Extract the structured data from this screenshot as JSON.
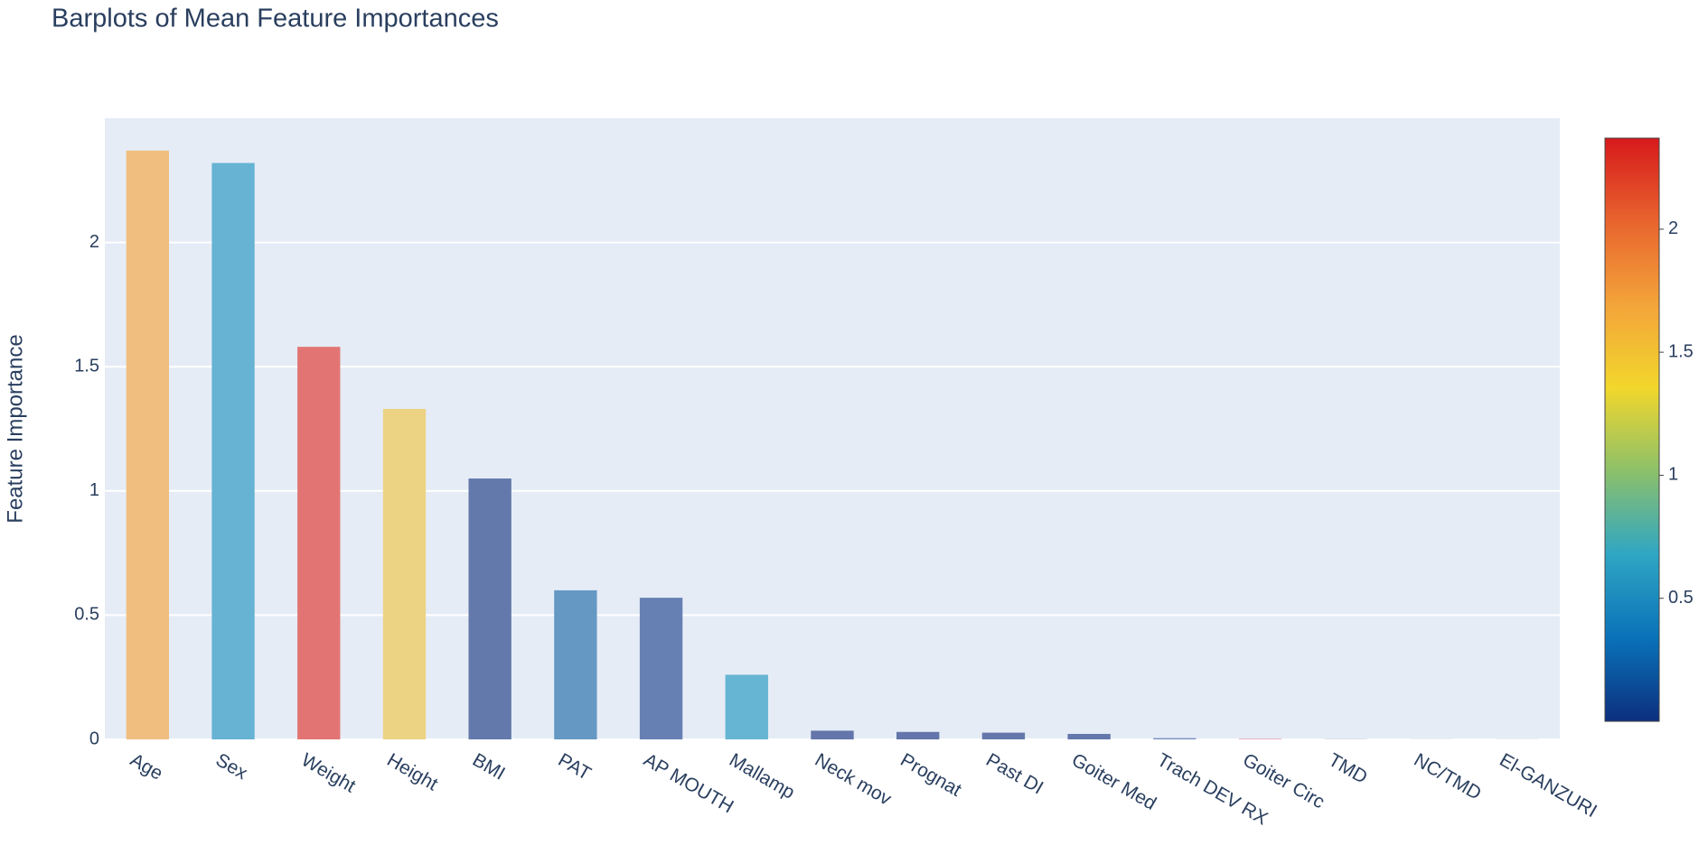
{
  "chart_data": {
    "type": "bar",
    "title": "Barplots of Mean Feature Importances",
    "y_label": "Feature Importance",
    "categories": [
      "Age",
      "Sex",
      "Weight",
      "Height",
      "BMI",
      "PAT",
      "AP MOUTH",
      "Mallamp",
      "Neck mov",
      "Prognat",
      "Past DI",
      "Goiter Med",
      "Trach DEV RX",
      "Goiter Circ",
      "TMD",
      "NC/TMD",
      "El-GANZURI"
    ],
    "values": [
      2.37,
      2.32,
      1.58,
      1.33,
      1.05,
      0.6,
      0.57,
      0.26,
      0.035,
      0.03,
      0.027,
      0.022,
      0.005,
      0.003,
      0.002,
      0.001,
      0.001
    ],
    "colors": [
      "#f0bf80",
      "#66b3d4",
      "#e27573",
      "#ecd383",
      "#6379ab",
      "#6598c2",
      "#6680b4",
      "#66b5d3",
      "#6375aa",
      "#6375aa",
      "#6377aa",
      "#6377ab",
      "#7a8fc0",
      "#e8a8b0",
      "#c8c8d8",
      "#c8c8d8",
      "#c8c8d8"
    ],
    "ylim": [
      0,
      2.5
    ],
    "yticks": [
      0,
      0.5,
      1,
      1.5,
      2
    ],
    "grid": true,
    "colorbar": {
      "lim": [
        0,
        2.37
      ],
      "ticks": [
        0.5,
        1,
        1.5,
        2
      ],
      "colorscale": [
        "#0c2f7f",
        "#0a72b8",
        "#2fa6c4",
        "#8cc06a",
        "#f2d72c",
        "#f3a43a",
        "#e8642e",
        "#d7191c"
      ]
    }
  }
}
